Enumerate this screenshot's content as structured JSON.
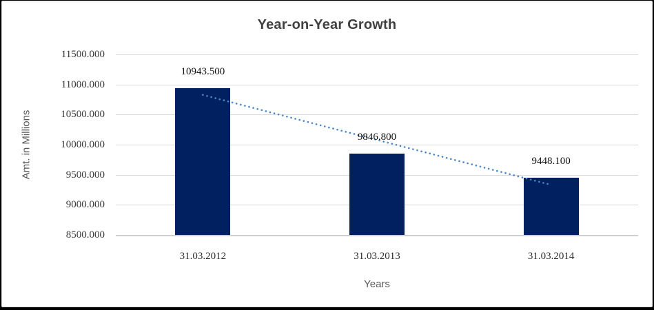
{
  "chart": {
    "title": "Year-on-Year Growth",
    "y_axis_title": "Amt. in Millions",
    "x_axis_title": "Years"
  },
  "chart_data": {
    "type": "bar",
    "title": "Year-on-Year Growth",
    "xlabel": "Years",
    "ylabel": "Amt. in Millions",
    "categories": [
      "31.03.2012",
      "31.03.2013",
      "31.03.2014"
    ],
    "values": [
      10943.5,
      9846.8,
      9448.1
    ],
    "data_labels": [
      "10943.500",
      "9846.800",
      "9448.100"
    ],
    "y_tick_labels": [
      "11500.000",
      "11000.000",
      "10500.000",
      "10000.000",
      "9500.000",
      "9000.000",
      "8500.000"
    ],
    "ylim": [
      8500,
      11500
    ],
    "ytick_step": 500,
    "grid": true,
    "legend": false,
    "bar_color": "#002060",
    "trendline": {
      "type": "linear",
      "style": "dotted",
      "color": "#4a86c8",
      "endpoint_values": [
        10827.23,
        9331.77
      ]
    }
  }
}
